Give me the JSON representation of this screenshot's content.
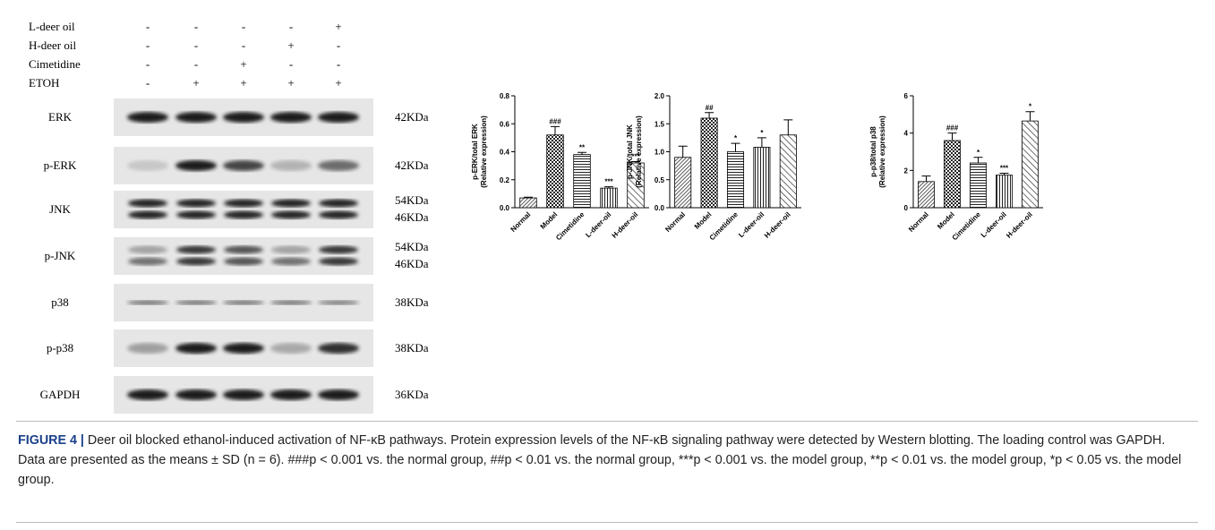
{
  "treatments": [
    {
      "label": "L-deer oil",
      "signs": [
        "-",
        "-",
        "-",
        "-",
        "+"
      ]
    },
    {
      "label": "H-deer oil",
      "signs": [
        "-",
        "-",
        "-",
        "+",
        "-"
      ]
    },
    {
      "label": "Cimetidine",
      "signs": [
        "-",
        "-",
        "+",
        "-",
        "-"
      ]
    },
    {
      "label": "ETOH",
      "signs": [
        "-",
        "+",
        "+",
        "+",
        "+"
      ]
    }
  ],
  "blot": {
    "rows": [
      {
        "label": "ERK",
        "sizes": [
          "42KDa"
        ]
      },
      {
        "label": "p-ERK",
        "sizes": [
          "42KDa"
        ]
      },
      {
        "label": "JNK",
        "sizes": [
          "54KDa",
          "46KDa"
        ]
      },
      {
        "label": "p-JNK",
        "sizes": [
          "54KDa",
          "46KDa"
        ]
      },
      {
        "label": "p38",
        "sizes": [
          "38KDa"
        ]
      },
      {
        "label": "p-p38",
        "sizes": [
          "38KDa"
        ]
      },
      {
        "label": "GAPDH",
        "sizes": [
          "36KDa"
        ]
      }
    ]
  },
  "chart_data": [
    {
      "type": "bar",
      "y_label": [
        "p-ERK/total ERK",
        "(Relative expression)"
      ],
      "categories": [
        "Normal",
        "Model",
        "Cimetidine",
        "L-deer-oil",
        "H-deer-oil"
      ],
      "values": [
        0.07,
        0.52,
        0.38,
        0.14,
        0.32
      ],
      "errors": [
        0.005,
        0.06,
        0.015,
        0.01,
        0.01
      ],
      "annotations": [
        null,
        "###",
        "**",
        "***",
        "***"
      ],
      "ylim": [
        0,
        0.8
      ],
      "yticks": [
        {
          "value": 0,
          "label": "0.0"
        },
        0.2,
        0.4,
        0.6,
        0.8
      ]
    },
    {
      "type": "bar",
      "y_label": [
        "p-JNK/total JNK",
        "(Relative expression)"
      ],
      "categories": [
        "Normal",
        "Model",
        "Cimetidine",
        "L-deer-oil",
        "H-deer-oil"
      ],
      "values": [
        0.9,
        1.6,
        1.0,
        1.08,
        1.3
      ],
      "errors": [
        0.2,
        0.1,
        0.15,
        0.17,
        0.27
      ],
      "annotations": [
        null,
        "##",
        "*",
        "*",
        null
      ],
      "ylim": [
        0,
        2
      ],
      "yticks": [
        {
          "value": 0,
          "label": "0.0"
        },
        0.5,
        {
          "value": 1,
          "label": "1.0"
        },
        1.5,
        {
          "value": 2,
          "label": "2.0"
        }
      ]
    },
    {
      "type": "bar",
      "y_label": [
        "p-p38/total p38",
        "(Relative expression)"
      ],
      "categories": [
        "Normal",
        "Model",
        "Cimetidine",
        "L-deer-oil",
        "H-deer-oil"
      ],
      "values": [
        1.4,
        3.6,
        2.4,
        1.75,
        4.65
      ],
      "errors": [
        0.3,
        0.4,
        0.3,
        0.1,
        0.5
      ],
      "annotations": [
        null,
        "###",
        "*",
        "***",
        "*"
      ],
      "ylim": [
        0,
        6
      ],
      "yticks": [
        0,
        2,
        4,
        6
      ]
    }
  ],
  "caption": {
    "label": "FIGURE 4 |",
    "text": "Deer oil blocked ethanol-induced activation of NF-κB pathways. Protein expression levels of the NF-κB signaling pathway were detected by Western blotting. The loading control was GAPDH. Data are presented as the means ± SD (n = 6). ###p < 0.001 vs. the normal group, ##p < 0.01 vs. the normal group, ***p < 0.001 vs. the model group, **p < 0.01 vs. the model group, *p < 0.05 vs. the model group."
  }
}
